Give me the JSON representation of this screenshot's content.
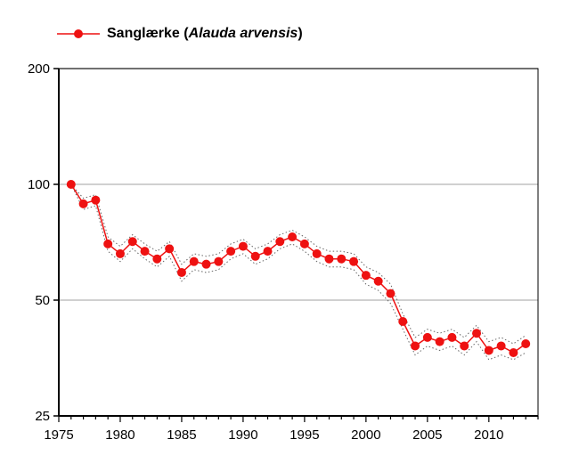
{
  "chart_data": {
    "type": "line",
    "legend": {
      "name_prefix": "Sanglærke (",
      "name_italic": "Alauda arvensis",
      "name_suffix": ")",
      "placement": "top-left"
    },
    "title": "",
    "xlabel": "",
    "ylabel": "",
    "x_scale": "linear",
    "y_scale": "log",
    "xlim": [
      1975,
      2014
    ],
    "ylim": [
      25,
      200
    ],
    "x_ticks": [
      1975,
      1980,
      1985,
      1990,
      1995,
      2000,
      2005,
      2010
    ],
    "y_ticks": [
      25,
      50,
      100,
      200
    ],
    "x_tick_labels": [
      "1975",
      "1980",
      "1985",
      "1990",
      "1995",
      "2000",
      "2005",
      "2010"
    ],
    "y_tick_labels": [
      "25",
      "50",
      "100",
      "200"
    ],
    "grid": {
      "horizontal": true,
      "vertical": false
    },
    "colors": {
      "series": "#ee1111",
      "band": "#666666",
      "grid": "#c0c0c0",
      "axis": "#000000"
    },
    "series": [
      {
        "x": [
          1976,
          1977,
          1978,
          1979,
          1980,
          1981,
          1982,
          1983,
          1984,
          1985,
          1986,
          1987,
          1988,
          1989,
          1990,
          1991,
          1992,
          1993,
          1994,
          1995,
          1996,
          1997,
          1998,
          1999,
          2000,
          2001,
          2002,
          2003,
          2004,
          2005,
          2006,
          2007,
          2008,
          2009,
          2010,
          2011,
          2012,
          2013
        ],
        "values": [
          100,
          89,
          91,
          70,
          66,
          71,
          67,
          64,
          68,
          59,
          63,
          62,
          63,
          67,
          69,
          65,
          67,
          71,
          73,
          70,
          66,
          64,
          64,
          63,
          58,
          56,
          52,
          44,
          38,
          40,
          39,
          40,
          38,
          41,
          37,
          38,
          36.5,
          38.5
        ],
        "lower": [
          100,
          86,
          88,
          67,
          63,
          68,
          64,
          61,
          65,
          56,
          60,
          59,
          60,
          64,
          66,
          62,
          64,
          68,
          70,
          67,
          63,
          61,
          61,
          60,
          55,
          53,
          49,
          42,
          36,
          38,
          37,
          38,
          36,
          39,
          35,
          36,
          35,
          36.5
        ],
        "upper": [
          100,
          92,
          94,
          73,
          69,
          74,
          70,
          67,
          71,
          62,
          66,
          65,
          66,
          70,
          72,
          68,
          70,
          74,
          76,
          73,
          69,
          67,
          67,
          66,
          61,
          59,
          55,
          46,
          40,
          42,
          41,
          42,
          40,
          43,
          39,
          40,
          38.5,
          40.5
        ]
      }
    ]
  }
}
